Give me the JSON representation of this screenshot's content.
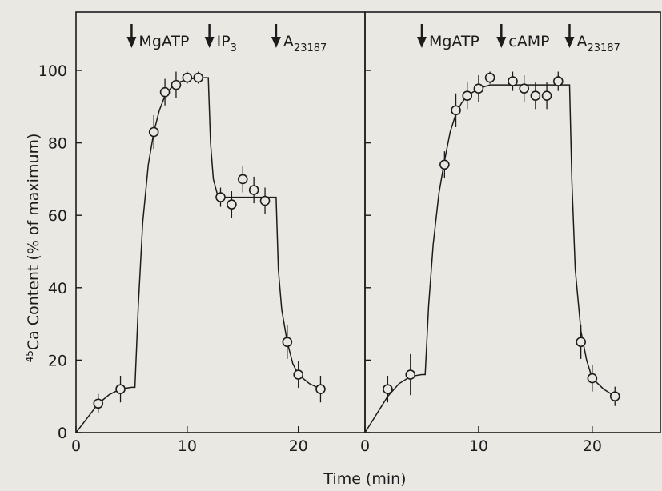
{
  "figure": {
    "ylabel_sup": "45",
    "ylabel_main": "Ca Content (% of maximum)",
    "xlabel": "Time (min)"
  },
  "chart_data": [
    {
      "type": "scatter",
      "panel": "left",
      "xlim": [
        0,
        26
      ],
      "ylim": [
        0,
        100
      ],
      "grid": false,
      "x_ticks": [
        0,
        10,
        20
      ],
      "y_ticks": [
        0,
        20,
        40,
        60,
        80,
        100
      ],
      "annotations": [
        {
          "label": "MgATP",
          "sub": "",
          "x": 5
        },
        {
          "label": "IP",
          "sub": "3",
          "x": 12
        },
        {
          "label": "A",
          "sub": "23187",
          "x": 18
        }
      ],
      "points": [
        {
          "x": 2,
          "y": 8,
          "err": 2
        },
        {
          "x": 4,
          "y": 12,
          "err": 3
        },
        {
          "x": 7,
          "y": 83,
          "err": 4
        },
        {
          "x": 8,
          "y": 94,
          "err": 3
        },
        {
          "x": 9,
          "y": 96,
          "err": 3
        },
        {
          "x": 10,
          "y": 98,
          "err": 1
        },
        {
          "x": 11,
          "y": 98,
          "err": 1
        },
        {
          "x": 13,
          "y": 65,
          "err": 2
        },
        {
          "x": 14,
          "y": 63,
          "err": 3
        },
        {
          "x": 15,
          "y": 70,
          "err": 3
        },
        {
          "x": 16,
          "y": 67,
          "err": 3
        },
        {
          "x": 17,
          "y": 64,
          "err": 3
        },
        {
          "x": 19,
          "y": 25,
          "err": 4
        },
        {
          "x": 20,
          "y": 16,
          "err": 3
        },
        {
          "x": 22,
          "y": 12,
          "err": 3
        }
      ],
      "curve": [
        [
          0,
          0
        ],
        [
          1,
          4
        ],
        [
          2,
          8
        ],
        [
          3,
          10.5
        ],
        [
          4,
          12
        ],
        [
          5,
          12.5
        ],
        [
          5.3,
          12.5
        ],
        [
          5.6,
          35
        ],
        [
          6,
          58
        ],
        [
          6.5,
          74
        ],
        [
          7,
          83
        ],
        [
          7.5,
          89
        ],
        [
          8,
          93
        ],
        [
          8.5,
          95
        ],
        [
          9,
          96.5
        ],
        [
          10,
          97.5
        ],
        [
          11,
          98
        ],
        [
          11.9,
          98
        ],
        [
          12.1,
          80
        ],
        [
          12.35,
          70
        ],
        [
          12.7,
          66
        ],
        [
          13.2,
          65
        ],
        [
          18,
          65
        ],
        [
          18.2,
          45
        ],
        [
          18.5,
          34
        ],
        [
          19,
          25
        ],
        [
          19.5,
          19
        ],
        [
          20,
          16
        ],
        [
          21,
          13.5
        ],
        [
          22,
          12
        ]
      ]
    },
    {
      "type": "scatter",
      "panel": "right",
      "xlim": [
        0,
        26
      ],
      "ylim": [
        0,
        100
      ],
      "grid": false,
      "x_ticks": [
        0,
        10,
        20
      ],
      "y_ticks": [
        0,
        20,
        40,
        60,
        80,
        100
      ],
      "annotations": [
        {
          "label": "MgATP",
          "sub": "",
          "x": 5
        },
        {
          "label": "cAMP",
          "sub": "",
          "x": 12
        },
        {
          "label": "A",
          "sub": "23187",
          "x": 18
        }
      ],
      "points": [
        {
          "x": 2,
          "y": 12,
          "err": 3
        },
        {
          "x": 4,
          "y": 16,
          "err": 5
        },
        {
          "x": 7,
          "y": 74,
          "err": 3
        },
        {
          "x": 8,
          "y": 89,
          "err": 4
        },
        {
          "x": 9,
          "y": 93,
          "err": 3
        },
        {
          "x": 10,
          "y": 95,
          "err": 3
        },
        {
          "x": 11,
          "y": 98,
          "err": 1
        },
        {
          "x": 13,
          "y": 97,
          "err": 2
        },
        {
          "x": 14,
          "y": 95,
          "err": 3
        },
        {
          "x": 15,
          "y": 93,
          "err": 3
        },
        {
          "x": 16,
          "y": 93,
          "err": 3
        },
        {
          "x": 17,
          "y": 97,
          "err": 2
        },
        {
          "x": 19,
          "y": 25,
          "err": 4
        },
        {
          "x": 20,
          "y": 15,
          "err": 3
        },
        {
          "x": 22,
          "y": 10,
          "err": 2
        }
      ],
      "curve": [
        [
          0,
          0
        ],
        [
          1,
          5
        ],
        [
          2,
          10
        ],
        [
          3,
          13.5
        ],
        [
          4,
          15.5
        ],
        [
          5,
          16
        ],
        [
          5.3,
          16
        ],
        [
          5.6,
          35
        ],
        [
          6,
          52
        ],
        [
          6.5,
          66
        ],
        [
          7,
          75
        ],
        [
          7.5,
          83
        ],
        [
          8,
          88
        ],
        [
          8.5,
          91
        ],
        [
          9,
          93
        ],
        [
          10,
          95
        ],
        [
          11,
          96
        ],
        [
          18,
          96
        ],
        [
          18.2,
          70
        ],
        [
          18.5,
          45
        ],
        [
          19,
          28
        ],
        [
          19.5,
          20
        ],
        [
          20,
          15
        ],
        [
          21,
          12
        ],
        [
          22,
          10
        ]
      ]
    }
  ]
}
